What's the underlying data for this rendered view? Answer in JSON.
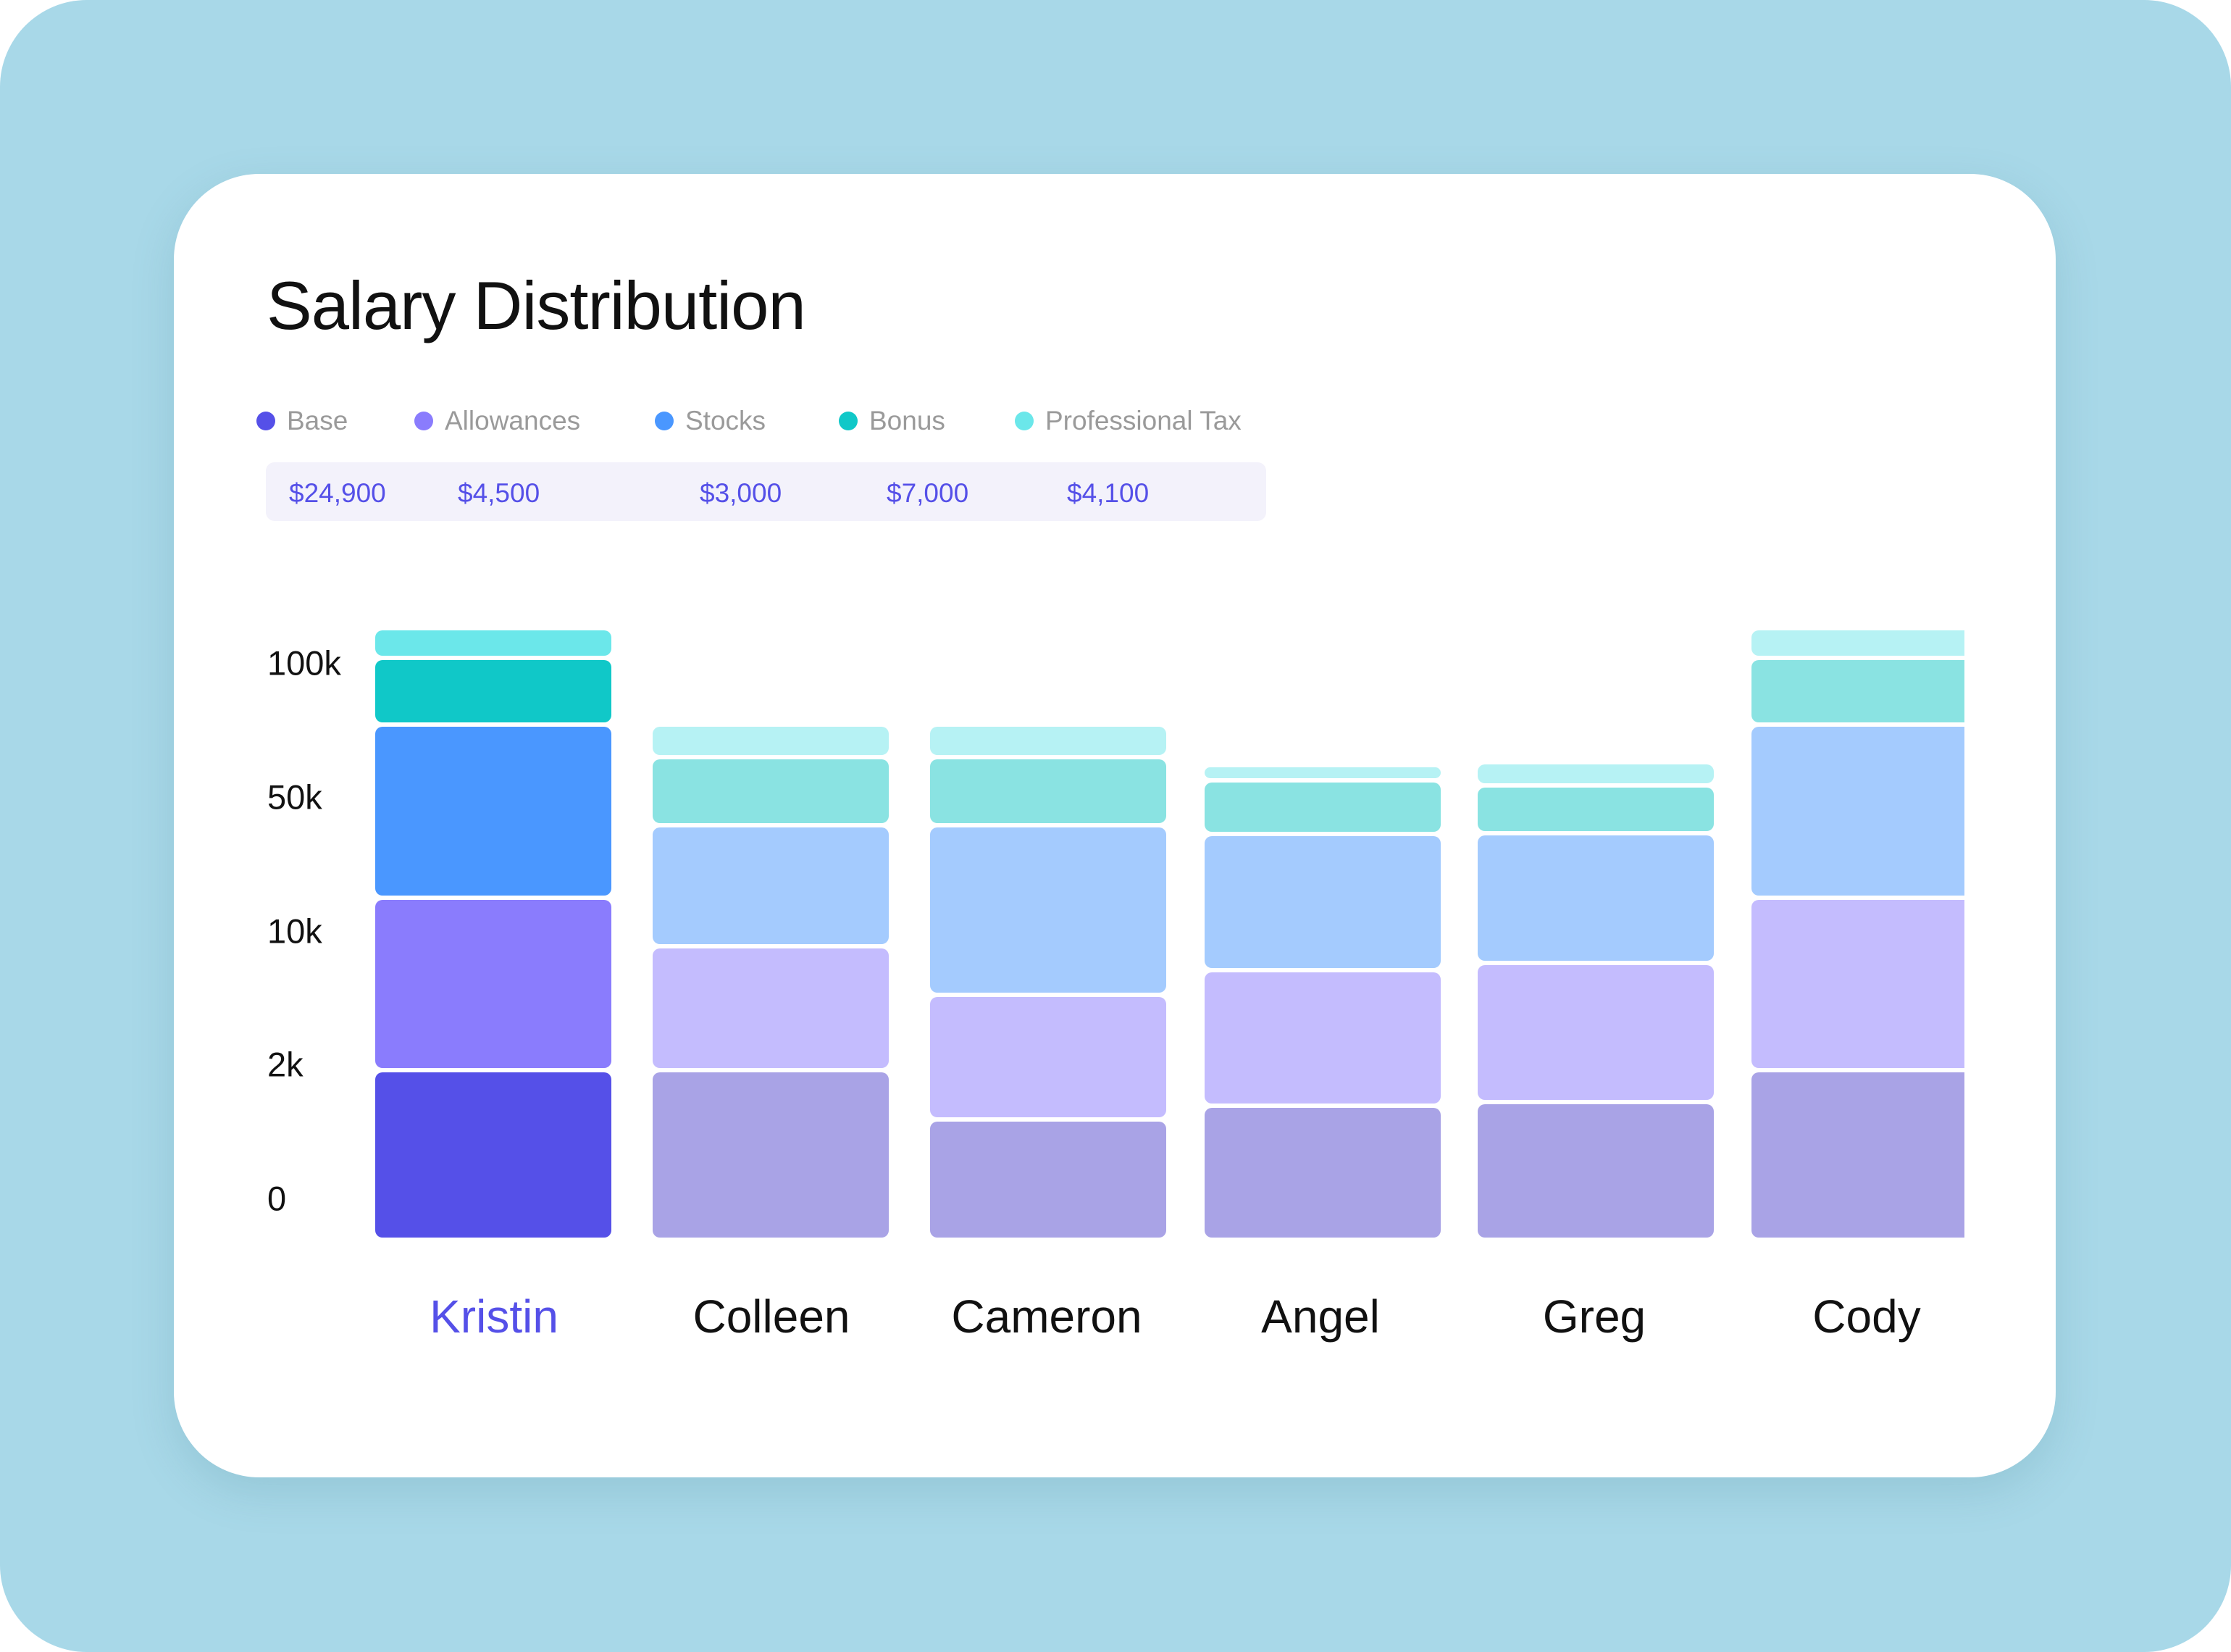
{
  "title": "Salary Distribution",
  "legend": [
    {
      "label": "Base",
      "color": "#5550E8",
      "value": "$24,900"
    },
    {
      "label": "Allowances",
      "color": "#8A7CFD",
      "value": "$4,500"
    },
    {
      "label": "Stocks",
      "color": "#4A97FF",
      "value": "$3,000"
    },
    {
      "label": "Bonus",
      "color": "#10C8C8",
      "value": "$7,000"
    },
    {
      "label": "Professional Tax",
      "color": "#6BE7EA",
      "value": "$4,100"
    }
  ],
  "chart_data": {
    "type": "bar",
    "stacked": true,
    "title": "Salary Distribution",
    "categories": [
      "Kristin",
      "Colleen",
      "Cameron",
      "Angel",
      "Greg",
      "Cody"
    ],
    "highlighted": "Kristin",
    "y_ticks": [
      "0",
      "2k",
      "10k",
      "50k",
      "100k"
    ],
    "y_tick_values": [
      0,
      2000,
      10000,
      50000,
      100000
    ],
    "y_scale": "non-linear (evenly spaced ticks)",
    "grid": false,
    "legend_position": "top-left",
    "series": [
      {
        "name": "Base",
        "values": [
          4100,
          4100,
          1800,
          2000,
          2200,
          4100
        ]
      },
      {
        "name": "Allowances",
        "values": [
          28000,
          13500,
          6800,
          8400,
          10300,
          28000
        ]
      },
      {
        "name": "Stocks",
        "values": [
          60000,
          37000,
          46000,
          41000,
          39000,
          60000
        ]
      },
      {
        "name": "Bonus",
        "values": [
          25000,
          25500,
          25500,
          20000,
          18000,
          25000
        ]
      },
      {
        "name": "Professional Tax",
        "values": [
          11000,
          12000,
          12000,
          5500,
          8500,
          11000
        ]
      }
    ],
    "colors_active": [
      "#5550E8",
      "#8A7CFD",
      "#4A97FF",
      "#10C8C8",
      "#6BE7EA"
    ],
    "colors_muted": [
      "#A9A3E6",
      "#C4BCFE",
      "#A4CBFE",
      "#8AE3E2",
      "#B6F2F4"
    ]
  }
}
